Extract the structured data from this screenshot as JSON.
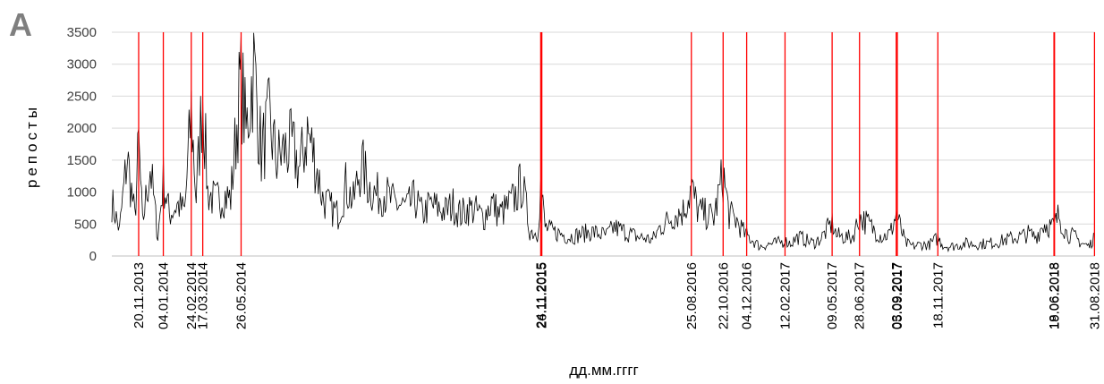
{
  "panel_label": "A",
  "chart_data": {
    "type": "line",
    "title": "",
    "xlabel": "дд.мм.гггг",
    "ylabel": "репосты",
    "ylim": [
      0,
      3500
    ],
    "yticks": [
      0,
      500,
      1000,
      1500,
      2000,
      2500,
      3000,
      3500
    ],
    "xlim": [
      "2013-10-02",
      "2018-09-01"
    ],
    "grid": "horizontal",
    "colors": {
      "series": "#000000",
      "event_lines": "#ff0000",
      "grid": "#d9d9d9",
      "panel_label": "#7f7f7f"
    },
    "event_dates": [
      "20.11.2013",
      "04.01.2014",
      "24.02.2014",
      "17.03.2014",
      "26.05.2014",
      "24.11.2015",
      "26.11.2015",
      "25.08.2016",
      "22.10.2016",
      "04.12.2016",
      "12.02.2017",
      "09.05.2017",
      "28.06.2017",
      "03.09.2017",
      "05.09.2017",
      "18.11.2017",
      "18.06.2018",
      "19.06.2018",
      "31.08.2018"
    ],
    "series": [
      {
        "x": [
          "2013-10-02",
          "2013-10-16",
          "2013-10-30",
          "2013-11-13",
          "2013-11-20",
          "2013-11-27",
          "2013-12-11",
          "2013-12-25",
          "2014-01-04",
          "2014-01-15",
          "2014-01-29",
          "2014-02-12",
          "2014-02-24",
          "2014-03-05",
          "2014-03-17",
          "2014-03-26",
          "2014-04-09",
          "2014-04-23",
          "2014-05-07",
          "2014-05-26",
          "2014-06-04",
          "2014-06-18",
          "2014-07-02",
          "2014-07-16",
          "2014-07-30",
          "2014-08-13",
          "2014-08-27",
          "2014-09-10",
          "2014-09-24",
          "2014-10-08",
          "2014-10-22",
          "2014-11-05",
          "2014-11-19",
          "2014-12-03",
          "2014-12-17",
          "2014-12-31",
          "2015-01-14",
          "2015-01-28",
          "2015-02-11",
          "2015-02-25",
          "2015-03-11",
          "2015-03-25",
          "2015-04-08",
          "2015-04-22",
          "2015-05-06",
          "2015-05-20",
          "2015-06-03",
          "2015-06-17",
          "2015-07-01",
          "2015-07-15",
          "2015-07-29",
          "2015-08-12",
          "2015-08-26",
          "2015-09-09",
          "2015-09-23",
          "2015-10-07",
          "2015-10-21",
          "2015-11-04",
          "2015-11-18",
          "2015-11-24",
          "2015-12-02",
          "2015-12-16",
          "2015-12-30",
          "2016-01-13",
          "2016-01-27",
          "2016-02-10",
          "2016-02-24",
          "2016-03-09",
          "2016-03-23",
          "2016-04-06",
          "2016-04-20",
          "2016-05-04",
          "2016-05-18",
          "2016-06-01",
          "2016-06-15",
          "2016-06-29",
          "2016-07-13",
          "2016-07-27",
          "2016-08-10",
          "2016-08-25",
          "2016-09-07",
          "2016-09-21",
          "2016-10-05",
          "2016-10-22",
          "2016-11-02",
          "2016-11-16",
          "2016-11-30",
          "2016-12-14",
          "2016-12-28",
          "2017-01-11",
          "2017-01-25",
          "2017-02-12",
          "2017-02-22",
          "2017-03-08",
          "2017-03-22",
          "2017-04-05",
          "2017-04-19",
          "2017-05-09",
          "2017-05-17",
          "2017-05-31",
          "2017-06-14",
          "2017-06-28",
          "2017-07-12",
          "2017-07-26",
          "2017-08-09",
          "2017-08-23",
          "2017-09-03",
          "2017-09-20",
          "2017-10-04",
          "2017-10-18",
          "2017-11-01",
          "2017-11-18",
          "2017-11-29",
          "2017-12-13",
          "2017-12-27",
          "2018-01-10",
          "2018-01-24",
          "2018-02-07",
          "2018-02-21",
          "2018-03-07",
          "2018-03-21",
          "2018-04-04",
          "2018-04-18",
          "2018-05-02",
          "2018-05-16",
          "2018-05-30",
          "2018-06-18",
          "2018-06-27",
          "2018-07-11",
          "2018-07-25",
          "2018-08-08",
          "2018-08-22",
          "2018-08-31"
        ],
        "y": [
          850,
          400,
          1550,
          600,
          1750,
          500,
          1400,
          300,
          1200,
          650,
          800,
          700,
          2250,
          900,
          2600,
          1000,
          850,
          950,
          900,
          2850,
          1900,
          3000,
          1600,
          2100,
          1500,
          1650,
          1700,
          1350,
          1950,
          1500,
          900,
          750,
          650,
          1100,
          850,
          1450,
          1100,
          950,
          1000,
          850,
          800,
          750,
          900,
          650,
          800,
          750,
          700,
          800,
          650,
          750,
          700,
          600,
          850,
          650,
          750,
          900,
          1150,
          400,
          350,
          1100,
          450,
          380,
          350,
          300,
          320,
          350,
          380,
          350,
          320,
          450,
          400,
          350,
          300,
          280,
          250,
          450,
          550,
          650,
          700,
          1050,
          700,
          650,
          600,
          1280,
          650,
          550,
          350,
          250,
          150,
          180,
          200,
          230,
          200,
          300,
          250,
          200,
          280,
          520,
          320,
          300,
          280,
          600,
          520,
          400,
          300,
          350,
          650,
          200,
          150,
          180,
          170,
          280,
          160,
          150,
          170,
          200,
          180,
          190,
          200,
          220,
          250,
          280,
          300,
          350,
          300,
          500,
          450,
          650,
          350,
          300,
          200,
          150,
          350
        ]
      }
    ]
  }
}
